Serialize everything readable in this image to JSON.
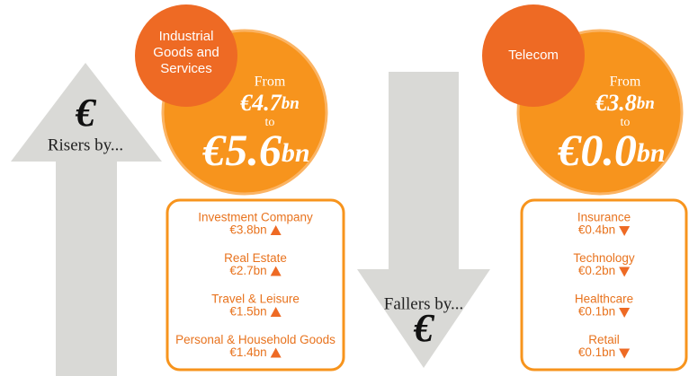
{
  "left_arrow": {
    "symbol": "€",
    "label": "Risers by..."
  },
  "middle_arrow": {
    "label": "Fallers by...",
    "symbol": "€"
  },
  "panels": [
    {
      "sector": [
        "Industrial",
        "Goods and",
        "Services"
      ],
      "from_label": "From",
      "from_amount": "€4.7",
      "from_unit": "bn",
      "to_label": "to",
      "to_amount": "€5.6",
      "to_unit": "bn",
      "items": [
        {
          "name": "Investment Company",
          "value": "€3.8bn"
        },
        {
          "name": "Real Estate",
          "value": "€2.7bn"
        },
        {
          "name": "Travel & Leisure",
          "value": "€1.5bn"
        },
        {
          "name": "Personal & Household Goods",
          "value": "€1.4bn"
        }
      ]
    },
    {
      "sector": [
        "Telecom"
      ],
      "from_label": "From",
      "from_amount": "€3.8",
      "from_unit": "bn",
      "to_label": "to",
      "to_amount": "€0.0",
      "to_unit": "bn",
      "items": [
        {
          "name": "Insurance",
          "value": "€0.4bn"
        },
        {
          "name": "Technology",
          "value": "€0.2bn"
        },
        {
          "name": "Healthcare",
          "value": "€0.1bn"
        },
        {
          "name": "Retail",
          "value": "€0.1bn"
        }
      ]
    }
  ]
}
